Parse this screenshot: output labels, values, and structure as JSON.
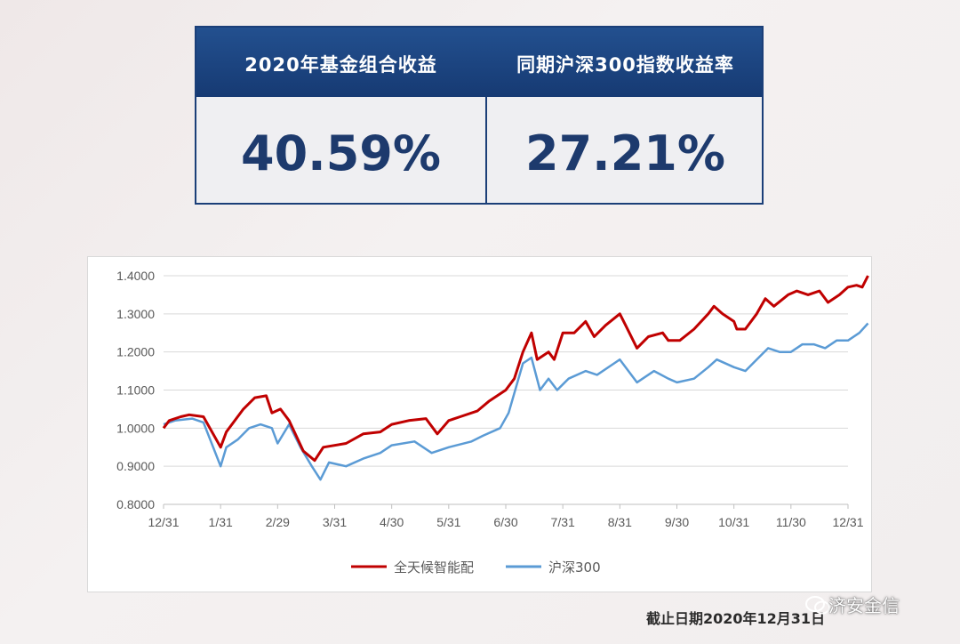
{
  "summary": {
    "headers": [
      "2020年基金组合收益",
      "同期沪深300指数收益率"
    ],
    "values": [
      "40.59%",
      "27.21%"
    ],
    "header_color": "#1b3f78",
    "value_color": "#1d3a6d"
  },
  "chart_data": {
    "type": "line",
    "title": "",
    "xlabel": "",
    "ylabel": "",
    "x": [
      "12/31",
      "1/31",
      "2/29",
      "3/31",
      "4/30",
      "5/31",
      "6/30",
      "7/31",
      "8/31",
      "9/30",
      "10/31",
      "11/30",
      "12/31"
    ],
    "ylim": [
      0.8,
      1.4
    ],
    "yticks": [
      "0.8000",
      "0.9000",
      "1.0000",
      "1.1000",
      "1.2000",
      "1.3000",
      "1.4000"
    ],
    "grid": true,
    "legend_position": "bottom",
    "series": [
      {
        "name": "全天候智能配",
        "color": "#c00000",
        "points": [
          [
            0,
            1.0
          ],
          [
            0.1,
            1.02
          ],
          [
            0.3,
            1.03
          ],
          [
            0.45,
            1.035
          ],
          [
            0.7,
            1.03
          ],
          [
            1.0,
            0.95
          ],
          [
            1.1,
            0.99
          ],
          [
            1.4,
            1.05
          ],
          [
            1.6,
            1.08
          ],
          [
            1.8,
            1.085
          ],
          [
            1.9,
            1.04
          ],
          [
            2.05,
            1.05
          ],
          [
            2.2,
            1.02
          ],
          [
            2.45,
            0.94
          ],
          [
            2.65,
            0.915
          ],
          [
            2.8,
            0.95
          ],
          [
            3.2,
            0.96
          ],
          [
            3.5,
            0.985
          ],
          [
            3.8,
            0.99
          ],
          [
            4.0,
            1.01
          ],
          [
            4.3,
            1.02
          ],
          [
            4.6,
            1.025
          ],
          [
            4.8,
            0.985
          ],
          [
            5.0,
            1.02
          ],
          [
            5.2,
            1.03
          ],
          [
            5.5,
            1.045
          ],
          [
            5.7,
            1.07
          ],
          [
            5.9,
            1.09
          ],
          [
            6.0,
            1.1
          ],
          [
            6.15,
            1.13
          ],
          [
            6.3,
            1.2
          ],
          [
            6.45,
            1.25
          ],
          [
            6.55,
            1.18
          ],
          [
            6.75,
            1.2
          ],
          [
            6.85,
            1.18
          ],
          [
            7.0,
            1.25
          ],
          [
            7.2,
            1.25
          ],
          [
            7.4,
            1.28
          ],
          [
            7.55,
            1.24
          ],
          [
            7.75,
            1.27
          ],
          [
            8.0,
            1.3
          ],
          [
            8.1,
            1.27
          ],
          [
            8.3,
            1.21
          ],
          [
            8.5,
            1.24
          ],
          [
            8.75,
            1.25
          ],
          [
            8.85,
            1.23
          ],
          [
            9.05,
            1.23
          ],
          [
            9.3,
            1.26
          ],
          [
            9.55,
            1.3
          ],
          [
            9.65,
            1.32
          ],
          [
            9.8,
            1.3
          ],
          [
            10.0,
            1.28
          ],
          [
            10.05,
            1.26
          ],
          [
            10.2,
            1.26
          ],
          [
            10.4,
            1.3
          ],
          [
            10.55,
            1.34
          ],
          [
            10.7,
            1.32
          ],
          [
            10.95,
            1.35
          ],
          [
            11.1,
            1.36
          ],
          [
            11.3,
            1.35
          ],
          [
            11.5,
            1.36
          ],
          [
            11.65,
            1.33
          ],
          [
            11.85,
            1.35
          ],
          [
            12.0,
            1.37
          ],
          [
            12.15,
            1.375
          ],
          [
            12.25,
            1.37
          ],
          [
            12.35,
            1.4
          ]
        ]
      },
      {
        "name": "沪深300",
        "color": "#5b9bd5",
        "points": [
          [
            0,
            1.01
          ],
          [
            0.2,
            1.02
          ],
          [
            0.5,
            1.025
          ],
          [
            0.7,
            1.015
          ],
          [
            1.0,
            0.9
          ],
          [
            1.1,
            0.95
          ],
          [
            1.3,
            0.97
          ],
          [
            1.5,
            1.0
          ],
          [
            1.7,
            1.01
          ],
          [
            1.9,
            1.0
          ],
          [
            2.0,
            0.96
          ],
          [
            2.2,
            1.01
          ],
          [
            2.4,
            0.95
          ],
          [
            2.6,
            0.9
          ],
          [
            2.75,
            0.865
          ],
          [
            2.9,
            0.91
          ],
          [
            3.2,
            0.9
          ],
          [
            3.5,
            0.92
          ],
          [
            3.8,
            0.935
          ],
          [
            4.0,
            0.955
          ],
          [
            4.4,
            0.965
          ],
          [
            4.7,
            0.935
          ],
          [
            5.0,
            0.95
          ],
          [
            5.4,
            0.965
          ],
          [
            5.6,
            0.98
          ],
          [
            5.9,
            1.0
          ],
          [
            6.05,
            1.04
          ],
          [
            6.3,
            1.17
          ],
          [
            6.45,
            1.185
          ],
          [
            6.6,
            1.1
          ],
          [
            6.75,
            1.13
          ],
          [
            6.9,
            1.1
          ],
          [
            7.1,
            1.13
          ],
          [
            7.4,
            1.15
          ],
          [
            7.6,
            1.14
          ],
          [
            7.9,
            1.17
          ],
          [
            8.0,
            1.18
          ],
          [
            8.15,
            1.15
          ],
          [
            8.3,
            1.12
          ],
          [
            8.6,
            1.15
          ],
          [
            8.85,
            1.13
          ],
          [
            9.0,
            1.12
          ],
          [
            9.3,
            1.13
          ],
          [
            9.55,
            1.16
          ],
          [
            9.7,
            1.18
          ],
          [
            10.0,
            1.16
          ],
          [
            10.2,
            1.15
          ],
          [
            10.4,
            1.18
          ],
          [
            10.6,
            1.21
          ],
          [
            10.8,
            1.2
          ],
          [
            11.0,
            1.2
          ],
          [
            11.2,
            1.22
          ],
          [
            11.4,
            1.22
          ],
          [
            11.6,
            1.21
          ],
          [
            11.8,
            1.23
          ],
          [
            12.0,
            1.23
          ],
          [
            12.2,
            1.25
          ],
          [
            12.35,
            1.275
          ]
        ]
      }
    ]
  },
  "footer": {
    "cutoff": "截止日期2020年12月31日",
    "watermark": "济安金信"
  }
}
